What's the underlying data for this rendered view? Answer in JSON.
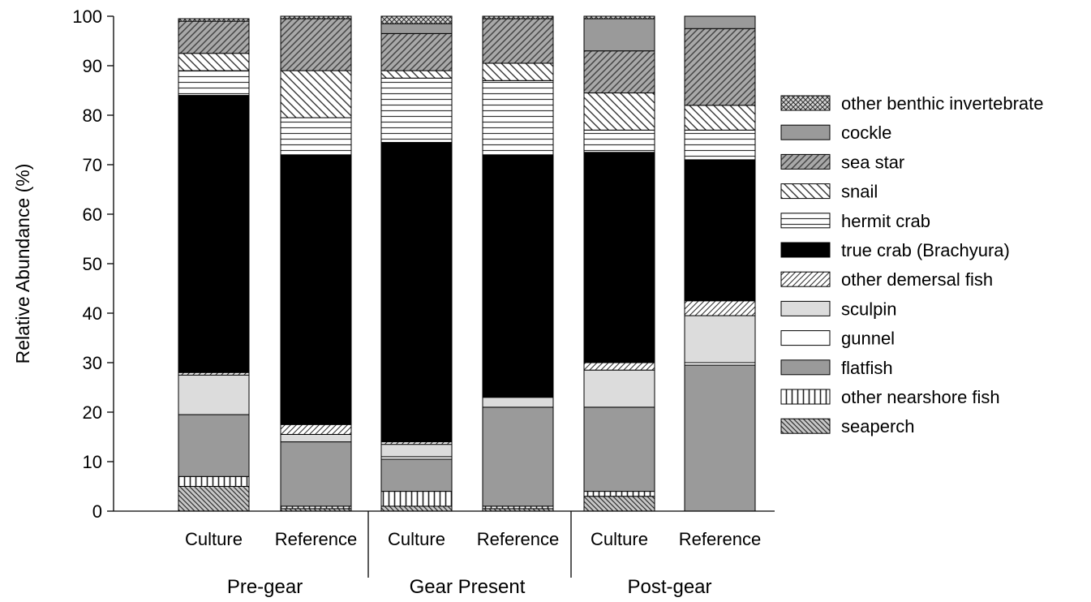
{
  "chart_data": {
    "type": "bar",
    "stacked": true,
    "ylabel": "Relative Abundance (%)",
    "xlabel": "",
    "ylim": [
      0,
      100
    ],
    "yticks": [
      0,
      10,
      20,
      30,
      40,
      50,
      60,
      70,
      80,
      90,
      100
    ],
    "legend_position": "right",
    "groups": [
      {
        "label": "Pre-gear",
        "categories": [
          "Culture",
          "Reference"
        ]
      },
      {
        "label": "Gear Present",
        "categories": [
          "Culture",
          "Reference"
        ]
      },
      {
        "label": "Post-gear",
        "categories": [
          "Culture",
          "Reference"
        ]
      }
    ],
    "categories": [
      "Culture",
      "Reference",
      "Culture",
      "Reference",
      "Culture",
      "Reference"
    ],
    "series": [
      {
        "name": "seaperch",
        "pattern": "hatch-dense-left",
        "values": [
          5,
          0.5,
          1,
          0.5,
          3,
          0
        ]
      },
      {
        "name": "other nearshore fish",
        "pattern": "vertical",
        "values": [
          2,
          0.5,
          3,
          0.5,
          1,
          0
        ]
      },
      {
        "name": "flatfish",
        "pattern": "solid-gray",
        "values": [
          12.5,
          13,
          6.5,
          20,
          17,
          29.5
        ]
      },
      {
        "name": "gunnel",
        "pattern": "white",
        "values": [
          0,
          0,
          0.5,
          0,
          0,
          0.5
        ]
      },
      {
        "name": "sculpin",
        "pattern": "light-gray",
        "values": [
          8,
          1.5,
          2.5,
          2,
          7.5,
          9.5
        ]
      },
      {
        "name": "other demersal fish",
        "pattern": "hatch-right-fine",
        "values": [
          0.5,
          2,
          0.5,
          0,
          1.5,
          3
        ]
      },
      {
        "name": "true crab (Brachyura)",
        "pattern": "black",
        "values": [
          56,
          54.5,
          60.5,
          49,
          42.5,
          28.5
        ]
      },
      {
        "name": "hermit crab",
        "pattern": "horizontal",
        "values": [
          5,
          7.5,
          13,
          15,
          4.5,
          6
        ]
      },
      {
        "name": "snail",
        "pattern": "hatch-left",
        "values": [
          3.5,
          9.5,
          1.5,
          3.5,
          7.5,
          5
        ]
      },
      {
        "name": "sea star",
        "pattern": "hatch-right",
        "values": [
          6.5,
          10.5,
          7.5,
          9,
          8.5,
          15.5
        ]
      },
      {
        "name": "cockle",
        "pattern": "solid-gray",
        "values": [
          0,
          0,
          2,
          0,
          6.5,
          2.5
        ]
      },
      {
        "name": "other benthic invertebrate",
        "pattern": "crosshatch",
        "values": [
          0.5,
          0.5,
          1.5,
          0.5,
          0.5,
          0
        ]
      }
    ]
  }
}
